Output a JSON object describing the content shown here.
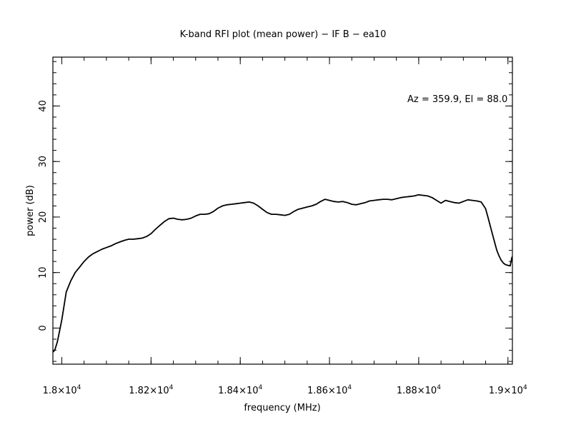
{
  "chart_data": {
    "type": "line",
    "title": "K-band RFI plot (mean power) − IF B − ea10",
    "annotation": "Az = 359.9, El = 88.0",
    "xlabel": "frequency (MHz)",
    "ylabel": "power (dB)",
    "xlim": [
      17980,
      19010
    ],
    "ylim": [
      -6.5,
      48.8
    ],
    "x_ticks": [
      {
        "value": 18000,
        "mantissa": "1.8",
        "exp": "4"
      },
      {
        "value": 18200,
        "mantissa": "1.82",
        "exp": "4"
      },
      {
        "value": 18400,
        "mantissa": "1.84",
        "exp": "4"
      },
      {
        "value": 18600,
        "mantissa": "1.86",
        "exp": "4"
      },
      {
        "value": 18800,
        "mantissa": "1.88",
        "exp": "4"
      },
      {
        "value": 19000,
        "mantissa": "1.9",
        "exp": "4"
      }
    ],
    "x_minor_step": 50,
    "y_ticks": [
      0,
      10,
      20,
      30,
      40
    ],
    "y_minor_step": 2,
    "grid": false,
    "series": [
      {
        "color": "#000000",
        "x": [
          17981,
          17985,
          17990,
          17995,
          18000,
          18005,
          18010,
          18020,
          18030,
          18040,
          18050,
          18060,
          18070,
          18080,
          18090,
          18100,
          18110,
          18120,
          18130,
          18140,
          18150,
          18160,
          18170,
          18180,
          18190,
          18200,
          18210,
          18220,
          18230,
          18240,
          18250,
          18260,
          18270,
          18280,
          18290,
          18300,
          18310,
          18320,
          18330,
          18340,
          18350,
          18360,
          18370,
          18380,
          18390,
          18400,
          18410,
          18420,
          18430,
          18440,
          18450,
          18460,
          18470,
          18480,
          18490,
          18500,
          18510,
          18520,
          18530,
          18540,
          18550,
          18560,
          18570,
          18580,
          18590,
          18600,
          18610,
          18620,
          18630,
          18640,
          18650,
          18660,
          18670,
          18680,
          18690,
          18700,
          18710,
          18720,
          18730,
          18740,
          18750,
          18760,
          18770,
          18780,
          18790,
          18800,
          18810,
          18820,
          18830,
          18840,
          18850,
          18860,
          18870,
          18880,
          18890,
          18900,
          18910,
          18920,
          18930,
          18940,
          18950,
          18955,
          18960,
          18965,
          18970,
          18975,
          18980,
          18985,
          18990,
          18995,
          19000,
          19005,
          19009
        ],
        "y": [
          -4.3,
          -3.8,
          -2.5,
          -0.5,
          1.5,
          4.0,
          6.5,
          8.5,
          10.0,
          11.0,
          12.0,
          12.8,
          13.4,
          13.8,
          14.2,
          14.5,
          14.8,
          15.2,
          15.5,
          15.8,
          16.0,
          16.0,
          16.1,
          16.2,
          16.5,
          17.0,
          17.8,
          18.5,
          19.2,
          19.7,
          19.8,
          19.6,
          19.5,
          19.6,
          19.8,
          20.2,
          20.5,
          20.5,
          20.6,
          21.0,
          21.6,
          22.0,
          22.2,
          22.3,
          22.4,
          22.5,
          22.6,
          22.7,
          22.5,
          22.0,
          21.4,
          20.8,
          20.5,
          20.5,
          20.4,
          20.3,
          20.5,
          21.0,
          21.4,
          21.6,
          21.8,
          22.0,
          22.3,
          22.8,
          23.2,
          23.0,
          22.8,
          22.7,
          22.8,
          22.6,
          22.3,
          22.2,
          22.4,
          22.6,
          22.9,
          23.0,
          23.1,
          23.2,
          23.2,
          23.1,
          23.3,
          23.5,
          23.6,
          23.7,
          23.8,
          24.0,
          23.9,
          23.8,
          23.5,
          23.0,
          22.5,
          23.0,
          22.8,
          22.6,
          22.5,
          22.8,
          23.1,
          23.0,
          22.9,
          22.7,
          21.5,
          20.0,
          18.5,
          17.0,
          15.5,
          14.0,
          13.0,
          12.2,
          11.7,
          11.4,
          11.3,
          11.2,
          12.8
        ]
      }
    ]
  }
}
